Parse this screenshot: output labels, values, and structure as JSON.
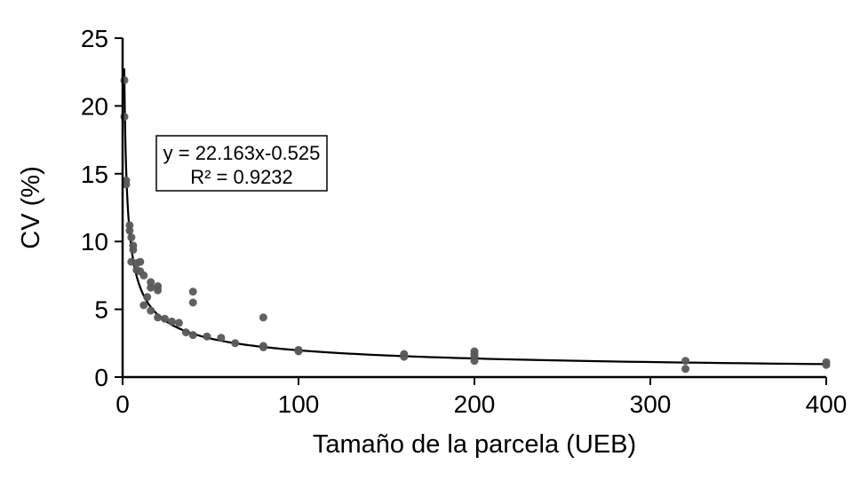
{
  "chart_data": {
    "type": "scatter",
    "title": "",
    "xlabel": "Tamaño de la parcela (UEB)",
    "ylabel": "CV (%)",
    "xlim": [
      0,
      400
    ],
    "ylim": [
      0,
      25
    ],
    "x_ticks": [
      0,
      100,
      200,
      300,
      400
    ],
    "y_ticks": [
      0,
      5,
      10,
      15,
      20,
      25
    ],
    "grid": false,
    "legend": false,
    "marker_color": "#595959",
    "line_color": "#000000",
    "annotation": {
      "line1": "y = 22.163x-0.525",
      "line2": "R² = 0.9232"
    },
    "trendline": {
      "type": "power",
      "a": 22.163,
      "b": -0.525,
      "x_start": 0.95,
      "x_end": 400
    },
    "points": [
      [
        1,
        21.9
      ],
      [
        1,
        19.2
      ],
      [
        2,
        14.5
      ],
      [
        2,
        14.2
      ],
      [
        4,
        11.2
      ],
      [
        4,
        10.8
      ],
      [
        5,
        10.3
      ],
      [
        6,
        9.7
      ],
      [
        6,
        9.4
      ],
      [
        5,
        8.5
      ],
      [
        8,
        8.4
      ],
      [
        10,
        8.5
      ],
      [
        8,
        7.9
      ],
      [
        10,
        7.8
      ],
      [
        12,
        7.5
      ],
      [
        16,
        7.0
      ],
      [
        16,
        6.6
      ],
      [
        20,
        6.7
      ],
      [
        20,
        6.4
      ],
      [
        14,
        5.9
      ],
      [
        12,
        5.3
      ],
      [
        16,
        4.9
      ],
      [
        20,
        4.4
      ],
      [
        24,
        4.3
      ],
      [
        28,
        4.1
      ],
      [
        32,
        4.0
      ],
      [
        40,
        6.3
      ],
      [
        40,
        5.5
      ],
      [
        36,
        3.3
      ],
      [
        40,
        3.1
      ],
      [
        48,
        3.0
      ],
      [
        56,
        2.9
      ],
      [
        64,
        2.5
      ],
      [
        80,
        4.4
      ],
      [
        80,
        2.3
      ],
      [
        80,
        2.2
      ],
      [
        100,
        2.0
      ],
      [
        100,
        1.9
      ],
      [
        160,
        1.7
      ],
      [
        160,
        1.5
      ],
      [
        200,
        1.9
      ],
      [
        200,
        1.7
      ],
      [
        200,
        1.5
      ],
      [
        200,
        1.2
      ],
      [
        320,
        1.2
      ],
      [
        320,
        0.6
      ],
      [
        400,
        1.1
      ],
      [
        400,
        0.9
      ]
    ]
  }
}
